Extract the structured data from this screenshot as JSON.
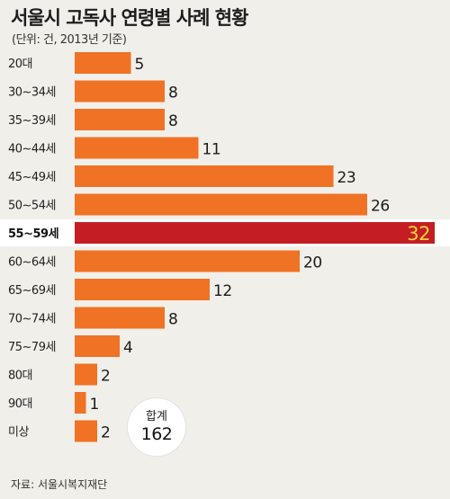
{
  "title": "서울시 고독사 연령별 사례 현황",
  "subtitle": "(단위: 건, 2013년 기준)",
  "source": "자료: 서울시복지재단",
  "total": {
    "label": "합계",
    "value": "162"
  },
  "colors": {
    "bar": "#f07224",
    "highlight_bar": "#c41e24",
    "highlight_value": "#f6d336",
    "background": "#f1efe9"
  },
  "chart_data": {
    "type": "bar",
    "orientation": "horizontal",
    "title": "서울시 고독사 연령별 사례 현황",
    "subtitle": "(단위: 건, 2013년 기준)",
    "categories": [
      "20대",
      "30~34세",
      "35~39세",
      "40~44세",
      "45~49세",
      "50~54세",
      "55~59세",
      "60~64세",
      "65~69세",
      "70~74세",
      "75~79세",
      "80대",
      "90대",
      "미상"
    ],
    "values": [
      5,
      8,
      8,
      11,
      23,
      26,
      32,
      20,
      12,
      8,
      4,
      2,
      1,
      2
    ],
    "highlight_category": "55~59세",
    "total": 162,
    "xlim": [
      0,
      32
    ],
    "grid": false,
    "legend": "none"
  }
}
